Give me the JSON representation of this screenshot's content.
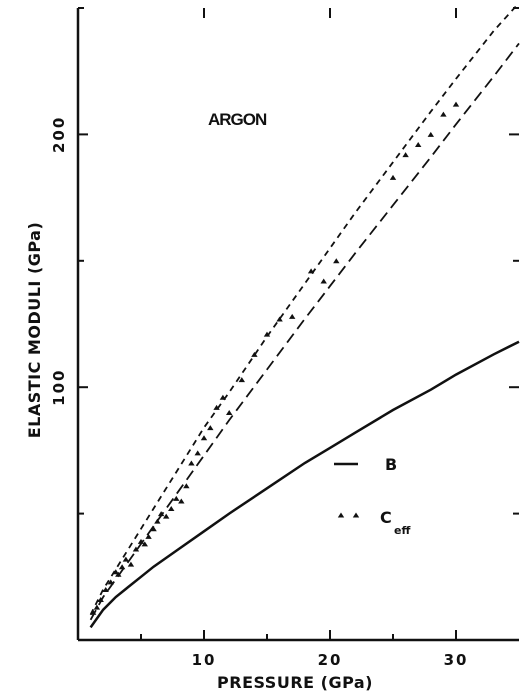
{
  "chart_data": {
    "type": "line",
    "title": "",
    "annotation": "ARGON",
    "xlabel": "PRESSURE (GPa)",
    "ylabel": "ELASTIC MODULI (GPa)",
    "xlim": [
      0,
      35
    ],
    "ylim": [
      0,
      250
    ],
    "xticks": [
      10,
      20,
      30
    ],
    "xtick_labels": [
      "10",
      "20",
      "30"
    ],
    "yticks": [
      100,
      200
    ],
    "ytick_labels": [
      "100",
      "200"
    ],
    "grid": false,
    "legend_position": "bottom-right",
    "legend": [
      {
        "label": "B",
        "subscript": "",
        "style": "solid-line"
      },
      {
        "label": "C",
        "subscript": "eff",
        "style": "triangles"
      }
    ],
    "series": [
      {
        "name": "B",
        "style": "solid",
        "x": [
          1,
          2,
          3,
          4,
          5,
          6,
          8,
          10,
          12,
          15,
          18,
          20,
          22,
          25,
          28,
          30,
          33,
          35
        ],
        "y": [
          5,
          12,
          17,
          21,
          25,
          29,
          36,
          43,
          50,
          60,
          70,
          76,
          82,
          91,
          99,
          105,
          113,
          118
        ]
      },
      {
        "name": "",
        "style": "short-dash",
        "x": [
          1,
          2,
          3,
          4,
          5,
          6,
          8,
          10,
          12,
          15,
          18,
          20,
          22,
          25,
          28,
          30,
          33,
          35
        ],
        "y": [
          10,
          20,
          28,
          36,
          44,
          52,
          68,
          84,
          98,
          120,
          141,
          155,
          169,
          189,
          209,
          222,
          241,
          252
        ]
      },
      {
        "name": "",
        "style": "long-dash",
        "x": [
          1,
          2,
          3,
          4,
          5,
          6,
          8,
          10,
          12,
          15,
          18,
          20,
          22,
          25,
          28,
          30,
          33,
          35
        ],
        "y": [
          8,
          17,
          24,
          31,
          38,
          45,
          59,
          73,
          87,
          107,
          127,
          140,
          153,
          172,
          191,
          204,
          223,
          236
        ]
      },
      {
        "name": "C_eff",
        "style": "triangles",
        "x": [
          1.2,
          1.5,
          1.8,
          2.2,
          2.6,
          3.0,
          3.2,
          3.5,
          3.8,
          4.2,
          4.6,
          5.0,
          5.3,
          5.6,
          6.0,
          6.3,
          6.6,
          7.0,
          7.4,
          7.8,
          8.2,
          8.6,
          9.0,
          9.5,
          10.0,
          10.5,
          11.0,
          11.5,
          12.0,
          13.0,
          14.0,
          15.0,
          16.0,
          17.0,
          18.5,
          19.5,
          20.5,
          25.0,
          26.0,
          27.0,
          28.0,
          29.0,
          30.0
        ],
        "y": [
          11,
          13,
          16,
          20,
          23,
          27,
          26,
          29,
          32,
          30,
          36,
          39,
          38,
          41,
          44,
          47,
          50,
          49,
          52,
          56,
          55,
          61,
          70,
          74,
          80,
          84,
          92,
          96,
          90,
          103,
          113,
          121,
          127,
          128,
          146,
          142,
          150,
          183,
          192,
          196,
          200,
          208,
          212
        ]
      }
    ]
  }
}
